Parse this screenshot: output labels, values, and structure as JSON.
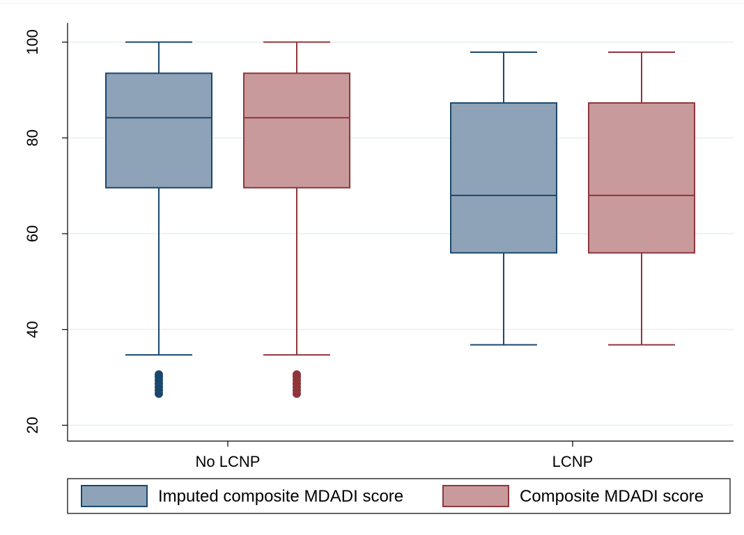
{
  "chart_data": {
    "type": "box",
    "categories": [
      "No LCNP",
      "LCNP"
    ],
    "ylim": [
      16.7,
      104
    ],
    "yticks": [
      20,
      40,
      60,
      80,
      100
    ],
    "ytick_labels": [
      "20",
      "40",
      "60",
      "80",
      "100"
    ],
    "grid": true,
    "legend_position": "bottom",
    "series": [
      {
        "name": "Imputed composite MDADI score",
        "fill": "#8ea3b7",
        "stroke": "#1a476f",
        "boxes": [
          {
            "category": "No LCNP",
            "whisker_low": 34.7,
            "q1": 69.6,
            "median": 84.2,
            "q3": 93.5,
            "whisker_high": 100,
            "outliers": [
              26.6,
              27.3,
              28.0,
              28.7,
              29.4,
              30.1,
              30.6
            ]
          },
          {
            "category": "LCNP",
            "whisker_low": 36.8,
            "q1": 56.0,
            "median": 68.0,
            "q3": 87.3,
            "whisker_high": 97.9,
            "outliers": []
          }
        ]
      },
      {
        "name": "Composite MDADI score",
        "fill": "#c99a9b",
        "stroke": "#90353b",
        "boxes": [
          {
            "category": "No LCNP",
            "whisker_low": 34.7,
            "q1": 69.6,
            "median": 84.2,
            "q3": 93.5,
            "whisker_high": 100,
            "outliers": [
              26.6,
              27.3,
              28.0,
              28.7,
              29.4,
              30.1,
              30.6
            ]
          },
          {
            "category": "LCNP",
            "whisker_low": 36.8,
            "q1": 56.0,
            "median": 68.0,
            "q3": 87.3,
            "whisker_high": 97.9,
            "outliers": []
          }
        ]
      }
    ]
  },
  "colors": {
    "grid": "#eaf2f3",
    "axis": "#000000",
    "background": "#ffffff"
  }
}
